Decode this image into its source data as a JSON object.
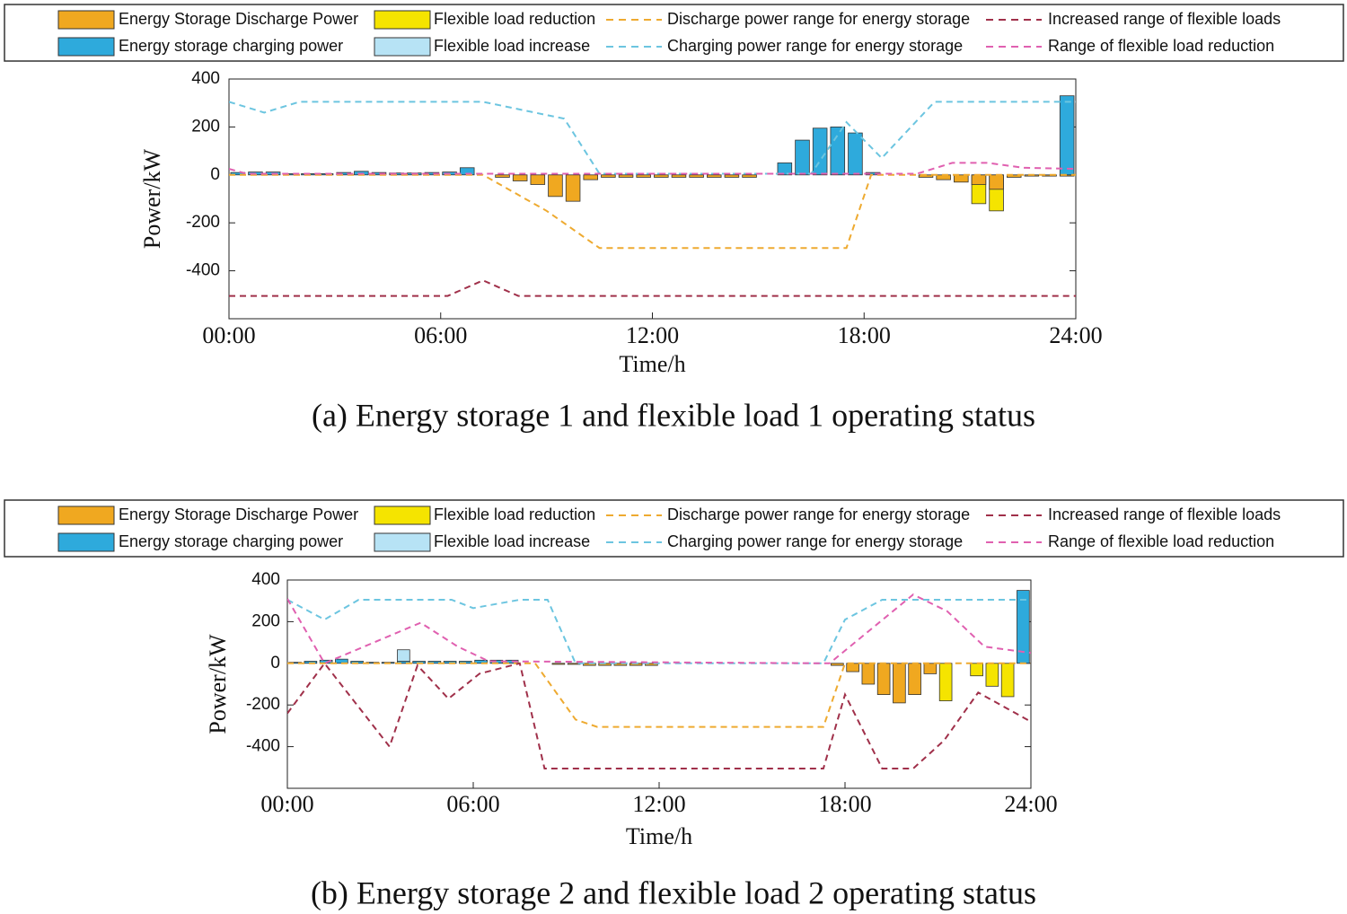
{
  "chart_data": [
    {
      "type": "combo",
      "caption": "(a) Energy storage 1 and flexible load 1 operating status",
      "ylabel": "Power/kW",
      "xlabel": "Time/h",
      "legend": "top",
      "xlim": [
        0,
        24
      ],
      "ylim": [
        -600,
        400
      ],
      "xticks": [
        {
          "value": 0,
          "label": "00:00"
        },
        {
          "value": 6,
          "label": "06:00"
        },
        {
          "value": 12,
          "label": "12:00"
        },
        {
          "value": 18,
          "label": "18:00"
        },
        {
          "value": 24,
          "label": "24:00"
        }
      ],
      "yticks": [
        -400,
        -200,
        0,
        200,
        400
      ],
      "x": [
        0.25,
        0.75,
        1.25,
        1.75,
        2.25,
        2.75,
        3.25,
        3.75,
        4.25,
        4.75,
        5.25,
        5.75,
        6.25,
        6.75,
        7.25,
        7.75,
        8.25,
        8.75,
        9.25,
        9.75,
        10.25,
        10.75,
        11.25,
        11.75,
        12.25,
        12.75,
        13.25,
        13.75,
        14.25,
        14.75,
        15.25,
        15.75,
        16.25,
        16.75,
        17.25,
        17.75,
        18.25,
        18.75,
        19.25,
        19.75,
        20.25,
        20.75,
        21.25,
        21.75,
        22.25,
        22.75,
        23.25,
        23.75
      ],
      "series": [
        {
          "name": "Energy Storage Discharge Power",
          "kind": "bar",
          "color": "#f0a820",
          "values": [
            0,
            0,
            0,
            0,
            0,
            0,
            0,
            0,
            0,
            0,
            0,
            0,
            0,
            0,
            0,
            -10,
            -25,
            -40,
            -90,
            -110,
            -20,
            -10,
            -10,
            -10,
            -10,
            -10,
            -10,
            -10,
            -10,
            -10,
            0,
            0,
            0,
            0,
            0,
            0,
            0,
            0,
            0,
            -10,
            -20,
            -30,
            -40,
            -60,
            -10,
            -5,
            -5,
            -5
          ]
        },
        {
          "name": "Energy storage charging power",
          "kind": "bar",
          "color": "#2eaadc",
          "values": [
            10,
            12,
            12,
            5,
            5,
            5,
            10,
            15,
            10,
            8,
            8,
            10,
            12,
            30,
            0,
            0,
            0,
            0,
            0,
            0,
            0,
            0,
            0,
            0,
            0,
            0,
            0,
            0,
            0,
            0,
            0,
            50,
            145,
            195,
            200,
            175,
            10,
            0,
            0,
            0,
            0,
            0,
            0,
            0,
            0,
            0,
            0,
            330
          ]
        },
        {
          "name": "Flexible load reduction",
          "kind": "bar",
          "color": "#f5e400",
          "values": [
            0,
            0,
            0,
            0,
            0,
            0,
            0,
            0,
            0,
            0,
            0,
            0,
            0,
            0,
            0,
            0,
            0,
            0,
            0,
            0,
            0,
            0,
            0,
            0,
            0,
            0,
            0,
            0,
            0,
            0,
            0,
            0,
            0,
            0,
            0,
            0,
            0,
            0,
            0,
            0,
            0,
            0,
            -120,
            -150,
            0,
            0,
            0,
            0
          ]
        },
        {
          "name": "Flexible load increase",
          "kind": "bar",
          "color": "#b7e3f5",
          "values": [
            0,
            0,
            0,
            0,
            0,
            0,
            0,
            0,
            0,
            0,
            0,
            0,
            0,
            0,
            0,
            0,
            0,
            0,
            0,
            0,
            0,
            0,
            0,
            0,
            0,
            0,
            0,
            0,
            0,
            0,
            0,
            0,
            0,
            0,
            0,
            0,
            0,
            0,
            0,
            0,
            0,
            0,
            0,
            0,
            0,
            0,
            0,
            0
          ]
        },
        {
          "name": "Discharge power range for energy storage",
          "kind": "line",
          "style": "dashed",
          "color": "#eeaa30",
          "x": [
            0,
            7.2,
            9,
            10.5,
            17.5,
            18.2,
            24
          ],
          "values": [
            0,
            0,
            -150,
            -305,
            -305,
            0,
            0
          ]
        },
        {
          "name": "Charging power range for energy storage",
          "kind": "line",
          "style": "dashed",
          "color": "#6cc5e0",
          "x": [
            0,
            1,
            2,
            7.2,
            9,
            9.5,
            10.5,
            16.5,
            17.5,
            18.5,
            20,
            24
          ],
          "values": [
            305,
            260,
            305,
            305,
            250,
            235,
            5,
            5,
            220,
            70,
            305,
            305
          ]
        },
        {
          "name": "Increased range of flexible loads",
          "kind": "line",
          "style": "dashed",
          "color": "#a0304a",
          "x": [
            0,
            6.2,
            7.2,
            8.2,
            24
          ],
          "values": [
            -505,
            -505,
            -440,
            -505,
            -505
          ]
        },
        {
          "name": "Range of flexible load reduction",
          "kind": "line",
          "style": "dashed",
          "color": "#e060b0",
          "x": [
            0,
            0.5,
            19.5,
            20.5,
            21.5,
            22.5,
            24
          ],
          "values": [
            25,
            5,
            5,
            50,
            50,
            30,
            25
          ]
        }
      ]
    },
    {
      "type": "combo",
      "caption": "(b) Energy storage 2 and flexible load 2 operating status",
      "ylabel": "Power/kW",
      "xlabel": "Time/h",
      "legend": "top",
      "xlim": [
        0,
        24
      ],
      "ylim": [
        -600,
        400
      ],
      "xticks": [
        {
          "value": 0,
          "label": "00:00"
        },
        {
          "value": 6,
          "label": "06:00"
        },
        {
          "value": 12,
          "label": "12:00"
        },
        {
          "value": 18,
          "label": "18:00"
        },
        {
          "value": 24,
          "label": "24:00"
        }
      ],
      "yticks": [
        -400,
        -200,
        0,
        200,
        400
      ],
      "x": [
        0.25,
        0.75,
        1.25,
        1.75,
        2.25,
        2.75,
        3.25,
        3.75,
        4.25,
        4.75,
        5.25,
        5.75,
        6.25,
        6.75,
        7.25,
        7.75,
        8.25,
        8.75,
        9.25,
        9.75,
        10.25,
        10.75,
        11.25,
        11.75,
        12.25,
        12.75,
        13.25,
        13.75,
        14.25,
        14.75,
        15.25,
        15.75,
        16.25,
        16.75,
        17.25,
        17.75,
        18.25,
        18.75,
        19.25,
        19.75,
        20.25,
        20.75,
        21.25,
        21.75,
        22.25,
        22.75,
        23.25,
        23.75
      ],
      "series": [
        {
          "name": "Energy Storage Discharge Power",
          "kind": "bar",
          "color": "#f0a820",
          "values": [
            0,
            0,
            0,
            0,
            0,
            0,
            0,
            0,
            0,
            0,
            0,
            0,
            0,
            0,
            0,
            0,
            0,
            -5,
            -5,
            -10,
            -10,
            -10,
            -10,
            -10,
            0,
            0,
            0,
            0,
            0,
            0,
            0,
            0,
            0,
            0,
            0,
            -10,
            -40,
            -100,
            -150,
            -190,
            -150,
            -50,
            0,
            0,
            0,
            0,
            0,
            0
          ]
        },
        {
          "name": "Energy storage charging power",
          "kind": "bar",
          "color": "#2eaadc",
          "values": [
            5,
            10,
            15,
            20,
            10,
            5,
            5,
            10,
            10,
            10,
            10,
            10,
            15,
            15,
            15,
            0,
            0,
            0,
            0,
            0,
            0,
            0,
            0,
            0,
            0,
            0,
            0,
            0,
            0,
            0,
            0,
            0,
            0,
            0,
            0,
            0,
            0,
            0,
            0,
            0,
            0,
            0,
            0,
            0,
            0,
            0,
            0,
            350
          ]
        },
        {
          "name": "Flexible load reduction",
          "kind": "bar",
          "color": "#f5e400",
          "values": [
            0,
            0,
            0,
            0,
            0,
            0,
            0,
            0,
            0,
            0,
            0,
            0,
            0,
            0,
            0,
            0,
            0,
            0,
            0,
            0,
            0,
            0,
            0,
            0,
            0,
            0,
            0,
            0,
            0,
            0,
            0,
            0,
            0,
            0,
            0,
            0,
            0,
            0,
            0,
            0,
            0,
            0,
            -180,
            0,
            -60,
            -110,
            -160,
            0
          ]
        },
        {
          "name": "Flexible load increase",
          "kind": "bar",
          "color": "#b7e3f5",
          "values": [
            0,
            0,
            0,
            0,
            0,
            0,
            0,
            65,
            0,
            0,
            0,
            0,
            0,
            0,
            0,
            0,
            0,
            0,
            0,
            0,
            0,
            0,
            0,
            0,
            0,
            0,
            0,
            0,
            0,
            0,
            0,
            0,
            0,
            0,
            0,
            0,
            0,
            0,
            0,
            0,
            0,
            0,
            0,
            0,
            0,
            0,
            0,
            0
          ]
        },
        {
          "name": "Discharge power range for energy storage",
          "kind": "line",
          "style": "dashed",
          "color": "#eeaa30",
          "x": [
            0,
            8,
            9.3,
            10,
            17.3,
            18,
            24
          ],
          "values": [
            0,
            0,
            -270,
            -305,
            -305,
            0,
            0
          ]
        },
        {
          "name": "Charging power range for energy storage",
          "kind": "line",
          "style": "dashed",
          "color": "#6cc5e0",
          "x": [
            0,
            1.2,
            2.3,
            5.3,
            6,
            7.5,
            8.4,
            9.3,
            17.3,
            18,
            19.2,
            24
          ],
          "values": [
            305,
            210,
            305,
            305,
            265,
            305,
            305,
            0,
            0,
            210,
            305,
            305
          ]
        },
        {
          "name": "Increased range of flexible loads",
          "kind": "line",
          "style": "dashed",
          "color": "#a0304a",
          "x": [
            0,
            1.2,
            3.3,
            4.2,
            5.2,
            6.2,
            7.5,
            8.3,
            17.3,
            18,
            19.2,
            20.2,
            21.2,
            22.3,
            24
          ],
          "values": [
            -240,
            0,
            -400,
            -10,
            -170,
            -50,
            0,
            -505,
            -505,
            -150,
            -505,
            -505,
            -370,
            -140,
            -280
          ]
        },
        {
          "name": "Range of flexible load reduction",
          "kind": "line",
          "style": "dashed",
          "color": "#e060b0",
          "x": [
            0,
            1.2,
            4.3,
            5.5,
            6.5,
            17.5,
            20.2,
            21.3,
            22.5,
            24
          ],
          "values": [
            310,
            0,
            195,
            80,
            10,
            0,
            330,
            250,
            80,
            50
          ]
        }
      ]
    }
  ]
}
